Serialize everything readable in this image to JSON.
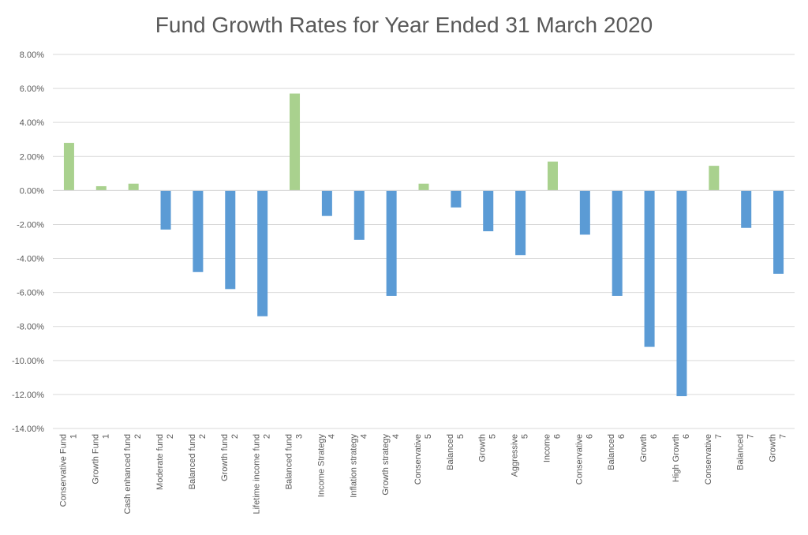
{
  "chart_data": {
    "type": "bar",
    "title": "Fund Growth Rates for Year Ended 31 March 2020",
    "xlabel": "",
    "ylabel": "",
    "ylim": [
      -14,
      8
    ],
    "y_ticks": [
      "8.00%",
      "6.00%",
      "4.00%",
      "2.00%",
      "0.00%",
      "-2.00%",
      "-4.00%",
      "-6.00%",
      "-8.00%",
      "-10.00%",
      "-12.00%",
      "-14.00%"
    ],
    "grid": true,
    "legend": "none",
    "colors": {
      "positive": "#a9d18e",
      "negative": "#5b9bd5"
    },
    "categories": [
      {
        "name": "Conservative Fund",
        "group": "1"
      },
      {
        "name": "Growth Fund",
        "group": "1"
      },
      {
        "name": "Cash enhanced fund",
        "group": "2"
      },
      {
        "name": "Moderate fund",
        "group": "2"
      },
      {
        "name": "Balanced fund",
        "group": "2"
      },
      {
        "name": "Growth fund",
        "group": "2"
      },
      {
        "name": "Lifetime income fund",
        "group": "2"
      },
      {
        "name": "Balanced fund",
        "group": "3"
      },
      {
        "name": "Income Strategy",
        "group": "4"
      },
      {
        "name": "Inflation strategy",
        "group": "4"
      },
      {
        "name": "Growth strategy",
        "group": "4"
      },
      {
        "name": "Conservative",
        "group": "5"
      },
      {
        "name": "Balanced",
        "group": "5"
      },
      {
        "name": "Growth",
        "group": "5"
      },
      {
        "name": "Aggressive",
        "group": "5"
      },
      {
        "name": "Income",
        "group": "6"
      },
      {
        "name": "Conservative",
        "group": "6"
      },
      {
        "name": "Balanced",
        "group": "6"
      },
      {
        "name": "Growth",
        "group": "6"
      },
      {
        "name": "High Growth",
        "group": "6"
      },
      {
        "name": "Conservative",
        "group": "7"
      },
      {
        "name": "Balanced",
        "group": "7"
      },
      {
        "name": "Growth",
        "group": "7"
      }
    ],
    "values": [
      2.8,
      0.25,
      0.4,
      -2.3,
      -4.8,
      -5.8,
      -7.4,
      5.7,
      -1.5,
      -2.9,
      -6.2,
      0.4,
      -1.0,
      -2.4,
      -3.8,
      1.7,
      -2.6,
      -6.2,
      -9.2,
      -12.1,
      1.45,
      -2.2,
      -4.9
    ]
  }
}
